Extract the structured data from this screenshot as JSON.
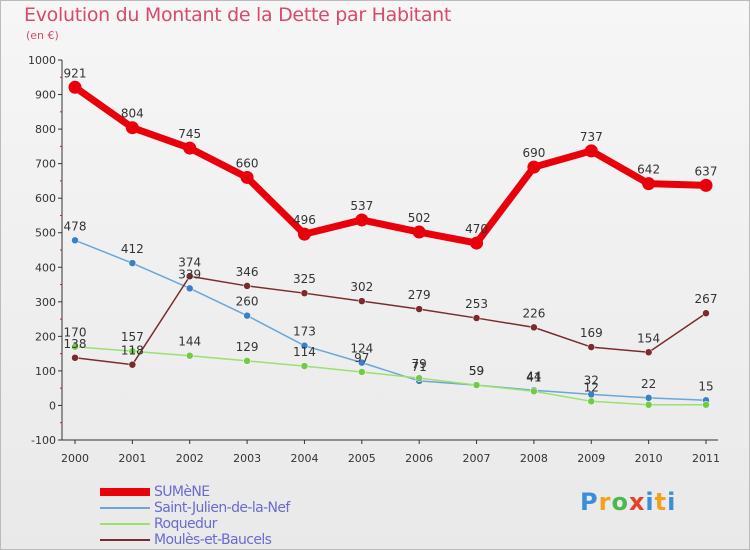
{
  "title": "Evolution du Montant de la Dette par Habitant",
  "subtitle": "(en €)",
  "logo": "Proxiti",
  "chart_data": {
    "type": "line",
    "title": "Evolution du Montant de la Dette par Habitant",
    "subtitle": "(en €)",
    "xlabel": "",
    "ylabel": "",
    "x": [
      "2000",
      "2001",
      "2002",
      "2003",
      "2004",
      "2005",
      "2006",
      "2007",
      "2008",
      "2009",
      "2010",
      "2011"
    ],
    "ylim": [
      -100,
      1000
    ],
    "yticks": [
      -100,
      0,
      100,
      200,
      300,
      400,
      500,
      600,
      700,
      800,
      900,
      1000
    ],
    "grid": false,
    "legend_position": "bottom-left",
    "series": [
      {
        "name": "SUMèNE",
        "color": "#e8000b",
        "width": 7,
        "values": [
          921,
          804,
          745,
          660,
          496,
          537,
          502,
          470,
          690,
          737,
          642,
          637
        ]
      },
      {
        "name": "Saint-Julien-de-la-Nef",
        "color": "#6aa6d8",
        "width": 1.5,
        "values": [
          478,
          412,
          339,
          260,
          173,
          124,
          71,
          59,
          44,
          32,
          22,
          15
        ]
      },
      {
        "name": "Roquedur",
        "color": "#9be070",
        "width": 1.5,
        "values": [
          170,
          157,
          144,
          129,
          114,
          97,
          79,
          59,
          41,
          12,
          2,
          2
        ]
      },
      {
        "name": "Moulès-et-Baucels",
        "color": "#7a2c2c",
        "width": 1.5,
        "values": [
          138,
          118,
          374,
          346,
          325,
          302,
          279,
          253,
          226,
          169,
          154,
          267
        ]
      }
    ],
    "data_labels": [
      {
        "series": 0,
        "index": 0,
        "text": "921"
      },
      {
        "series": 0,
        "index": 1,
        "text": "804"
      },
      {
        "series": 0,
        "index": 2,
        "text": "745"
      },
      {
        "series": 0,
        "index": 3,
        "text": "660"
      },
      {
        "series": 0,
        "index": 4,
        "text": "496"
      },
      {
        "series": 0,
        "index": 5,
        "text": "537"
      },
      {
        "series": 0,
        "index": 6,
        "text": "502"
      },
      {
        "series": 0,
        "index": 7,
        "text": "470"
      },
      {
        "series": 0,
        "index": 8,
        "text": "690"
      },
      {
        "series": 0,
        "index": 9,
        "text": "737"
      },
      {
        "series": 0,
        "index": 10,
        "text": "642"
      },
      {
        "series": 0,
        "index": 11,
        "text": "637"
      },
      {
        "series": 1,
        "index": 0,
        "text": "478"
      },
      {
        "series": 1,
        "index": 1,
        "text": "412"
      },
      {
        "series": 1,
        "index": 2,
        "text": "339"
      },
      {
        "series": 1,
        "index": 3,
        "text": "260"
      },
      {
        "series": 1,
        "index": 4,
        "text": "173"
      },
      {
        "series": 1,
        "index": 5,
        "text": "124"
      },
      {
        "series": 1,
        "index": 6,
        "text": "71"
      },
      {
        "series": 1,
        "index": 7,
        "text": "59"
      },
      {
        "series": 1,
        "index": 8,
        "text": "44"
      },
      {
        "series": 1,
        "index": 9,
        "text": "32"
      },
      {
        "series": 1,
        "index": 10,
        "text": "22"
      },
      {
        "series": 1,
        "index": 11,
        "text": "15"
      },
      {
        "series": 2,
        "index": 0,
        "text": "170"
      },
      {
        "series": 2,
        "index": 1,
        "text": "157"
      },
      {
        "series": 2,
        "index": 2,
        "text": "144"
      },
      {
        "series": 2,
        "index": 3,
        "text": "129"
      },
      {
        "series": 2,
        "index": 4,
        "text": "114"
      },
      {
        "series": 2,
        "index": 5,
        "text": "97"
      },
      {
        "series": 2,
        "index": 6,
        "text": "79"
      },
      {
        "series": 2,
        "index": 7,
        "text": "59"
      },
      {
        "series": 2,
        "index": 8,
        "text": "41"
      },
      {
        "series": 2,
        "index": 9,
        "text": "12"
      },
      {
        "series": 3,
        "index": 0,
        "text": "138"
      },
      {
        "series": 3,
        "index": 1,
        "text": "118"
      },
      {
        "series": 3,
        "index": 2,
        "text": "374"
      },
      {
        "series": 3,
        "index": 3,
        "text": "346"
      },
      {
        "series": 3,
        "index": 4,
        "text": "325"
      },
      {
        "series": 3,
        "index": 5,
        "text": "302"
      },
      {
        "series": 3,
        "index": 6,
        "text": "279"
      },
      {
        "series": 3,
        "index": 7,
        "text": "253"
      },
      {
        "series": 3,
        "index": 8,
        "text": "226"
      },
      {
        "series": 3,
        "index": 9,
        "text": "169"
      },
      {
        "series": 3,
        "index": 10,
        "text": "154"
      },
      {
        "series": 3,
        "index": 11,
        "text": "267"
      }
    ]
  }
}
